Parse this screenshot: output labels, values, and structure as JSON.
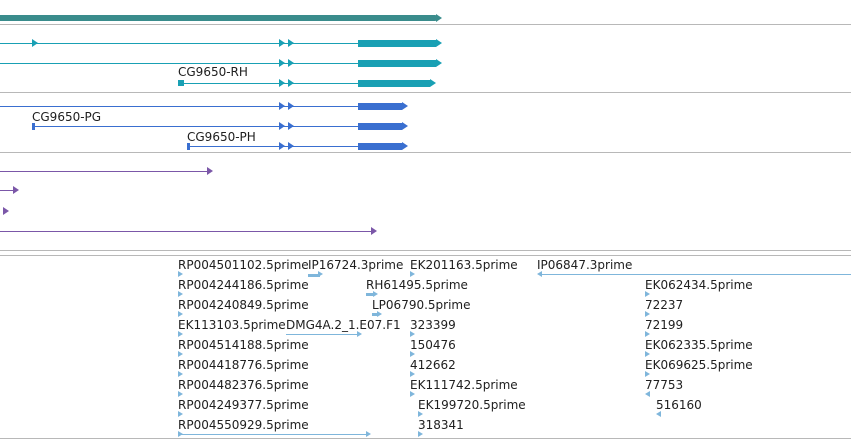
{
  "colors": {
    "gene": "#3a8c8c",
    "transcript_teal": "#19a0b4",
    "transcript_blue": "#3a6fd0",
    "transcript_purple": "#7b57a8",
    "est": "#7fb6db"
  },
  "transcripts": {
    "rh": "CG9650-RH",
    "pg": "CG9650-PG",
    "ph": "CG9650-PH"
  },
  "ests": [
    "RP004501102.5prime",
    "IP16724.3prime",
    "EK201163.5prime",
    "IP06847.3prime",
    "RP004244186.5prime",
    "RH61495.5prime",
    "EK062434.5prime",
    "RP004240849.5prime",
    "LP06790.5prime",
    "72237",
    "EK113103.5prime",
    "DMG4A.2_1.E07.F1",
    "323399",
    "72199",
    "RP004514188.5prime",
    "150476",
    "EK062335.5prime",
    "RP004418776.5prime",
    "412662",
    "EK069625.5prime",
    "RP004482376.5prime",
    "EK111742.5prime",
    "77753",
    "RP004249377.5prime",
    "EK199720.5prime",
    "516160",
    "RP004550929.5prime",
    "318341"
  ]
}
